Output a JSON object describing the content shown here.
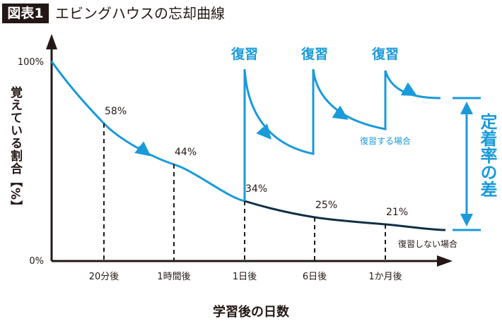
{
  "header": {
    "badge": "図表1",
    "title": "エビングハウスの忘却曲線"
  },
  "colors": {
    "with_review": "#1a9ad9",
    "without_review": "#0e2f44",
    "axis": "#231815"
  },
  "chart_data": {
    "type": "line",
    "title": "エビングハウスの忘却曲線",
    "xlabel": "学習後の日数",
    "ylabel": "覚えている割合【%】",
    "y_ticks": [
      "100%",
      "0%"
    ],
    "ylim": [
      0,
      100
    ],
    "categories": [
      "0",
      "20分後",
      "1時間後",
      "1日後",
      "6日後",
      "1か月後"
    ],
    "x_tick_labels": [
      "20分後",
      "1時間後",
      "1日後",
      "6日後",
      "1か月後"
    ],
    "series": [
      {
        "name": "復習しない場合",
        "values": [
          100,
          58,
          44,
          34,
          25,
          21
        ],
        "data_labels": [
          "",
          "58%",
          "44%",
          "34%",
          "25%",
          "21%"
        ]
      },
      {
        "name": "復習する場合",
        "review_points": [
          "1日後",
          "6日後",
          "1か月後"
        ]
      }
    ],
    "annotations": {
      "review": "復習",
      "difference": "定着率の差"
    },
    "grid": false
  }
}
